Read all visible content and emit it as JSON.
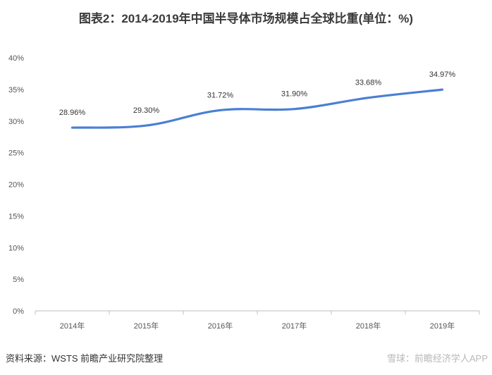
{
  "title": "图表2：2014-2019年中国半导体市场规模占全球比重(单位：%)",
  "source": "资料来源：WSTS 前瞻产业研究院整理",
  "footer_logo": "雪球：前瞻经济学人APP",
  "chart_data": {
    "type": "line",
    "title": "图表2：2014-2019年中国半导体市场规模占全球比重(单位：%)",
    "xlabel": "",
    "ylabel": "",
    "categories": [
      "2014年",
      "2015年",
      "2016年",
      "2017年",
      "2018年",
      "2019年"
    ],
    "series": [
      {
        "values": [
          28.96,
          29.3,
          31.72,
          31.9,
          33.68,
          34.97
        ],
        "labels": [
          "28.96%",
          "29.30%",
          "31.72%",
          "31.90%",
          "33.68%",
          "34.97%"
        ]
      }
    ],
    "ylim": [
      0,
      40
    ],
    "yticks": [
      0,
      5,
      10,
      15,
      20,
      25,
      30,
      35,
      40
    ],
    "ytick_labels": [
      "0%",
      "5%",
      "10%",
      "15%",
      "20%",
      "25%",
      "30%",
      "35%",
      "40%"
    ],
    "grid": false,
    "line_color": "#4a7fd4",
    "axis_color": "#bfbfbf"
  }
}
